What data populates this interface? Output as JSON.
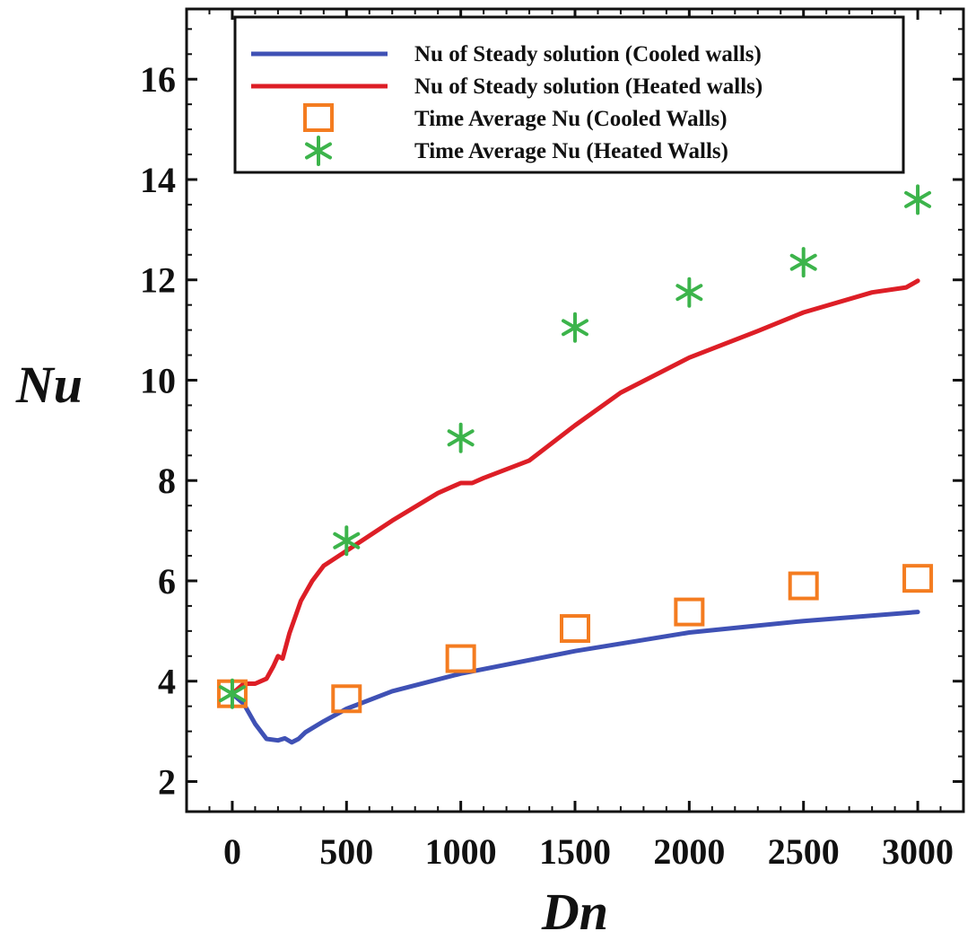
{
  "chart_data": {
    "type": "line",
    "title": "",
    "xlabel": "Dn",
    "ylabel": "Nu",
    "xlim": [
      -200,
      3200
    ],
    "ylim": [
      1.4,
      17.4
    ],
    "xticks": [
      0,
      500,
      1000,
      1500,
      2000,
      2500,
      3000
    ],
    "xtick_labels": [
      "0",
      "500",
      "1000",
      "1500",
      "2000",
      "2500",
      "3000"
    ],
    "yticks": [
      2,
      4,
      6,
      8,
      10,
      12,
      14,
      16
    ],
    "ytick_labels": [
      "2",
      "4",
      "6",
      "8",
      "10",
      "12",
      "14",
      "16"
    ],
    "grid": false,
    "legend_position": "top-right",
    "series": [
      {
        "name": "Nu of Steady solution (Cooled walls)",
        "kind": "line",
        "color": "#3f51b5",
        "x": [
          0,
          50,
          100,
          150,
          200,
          230,
          260,
          290,
          320,
          400,
          500,
          700,
          1000,
          1500,
          2000,
          2500,
          3000
        ],
        "y": [
          3.75,
          3.55,
          3.15,
          2.85,
          2.82,
          2.86,
          2.78,
          2.85,
          2.98,
          3.2,
          3.45,
          3.8,
          4.15,
          4.6,
          4.97,
          5.2,
          5.38
        ]
      },
      {
        "name": "Nu of Steady solution (Heated walls)",
        "kind": "line",
        "color": "#dd1e26",
        "x": [
          0,
          50,
          100,
          150,
          180,
          200,
          220,
          250,
          300,
          350,
          400,
          500,
          700,
          900,
          1000,
          1050,
          1100,
          1300,
          1500,
          1700,
          2000,
          2300,
          2500,
          2800,
          2950,
          3000
        ],
        "y": [
          3.75,
          3.95,
          3.95,
          4.05,
          4.3,
          4.5,
          4.45,
          4.95,
          5.6,
          6.0,
          6.3,
          6.6,
          7.2,
          7.75,
          7.95,
          7.95,
          8.05,
          8.4,
          9.1,
          9.75,
          10.45,
          10.98,
          11.35,
          11.75,
          11.85,
          11.98
        ]
      },
      {
        "name": "Time Average Nu (Cooled Walls)",
        "kind": "marker-square",
        "color": "#f47c20",
        "x": [
          0,
          500,
          1000,
          1500,
          2000,
          2500,
          3000
        ],
        "y": [
          3.75,
          3.65,
          4.45,
          5.05,
          5.38,
          5.9,
          6.05
        ]
      },
      {
        "name": "Time Average Nu (Heated Walls)",
        "kind": "marker-asterisk",
        "color": "#3cb44b",
        "x": [
          0,
          500,
          1000,
          1500,
          2000,
          2500,
          3000
        ],
        "y": [
          3.75,
          6.8,
          8.85,
          11.05,
          11.75,
          12.35,
          13.6
        ]
      }
    ]
  }
}
